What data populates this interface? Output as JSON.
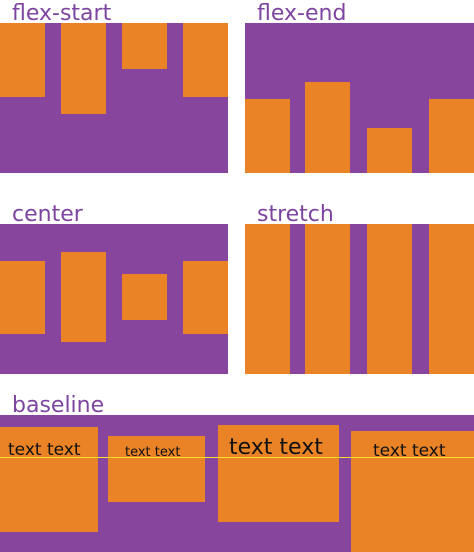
{
  "colors": {
    "container": "#87459d",
    "item": "#e98325",
    "label": "#7e45a0",
    "baseline_line": "#f3df2d",
    "item_text": "#111111"
  },
  "labels": {
    "flex_start": "flex-start",
    "flex_end": "flex-end",
    "center": "center",
    "stretch": "stretch",
    "baseline": "baseline"
  },
  "baseline_items": {
    "item1": "text text",
    "item2": "text text",
    "item3": "text text",
    "item4": "text text"
  }
}
